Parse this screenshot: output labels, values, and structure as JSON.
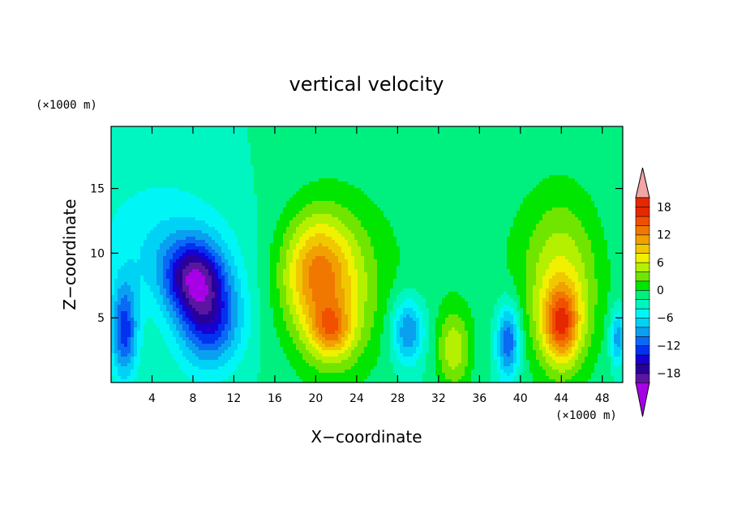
{
  "chart_data": {
    "type": "heatmap",
    "title": "vertical velocity",
    "xlabel": "X−coordinate",
    "ylabel": "Z−coordinate",
    "x_unit": "(×1000 m)",
    "y_unit": "(×1000 m)",
    "xlim": [
      0,
      50
    ],
    "ylim": [
      0,
      19.8
    ],
    "x_ticks": [
      "4",
      "8",
      "12",
      "16",
      "20",
      "24",
      "28",
      "32",
      "36",
      "40",
      "44",
      "48"
    ],
    "y_ticks": [
      "5",
      "10",
      "15"
    ],
    "colorbar_ticks": [
      "18",
      "12",
      "6",
      "0",
      "−6",
      "−12",
      "−18"
    ],
    "levels": [
      -20,
      -18,
      -16,
      -14,
      -12,
      -10,
      -8,
      -6,
      -4,
      -2,
      0,
      2,
      4,
      6,
      8,
      10,
      12,
      14,
      16,
      18,
      20
    ],
    "colors": [
      "#a800e6",
      "#5a16a0",
      "#28009a",
      "#1800d0",
      "#0032f0",
      "#0a6af5",
      "#0aa0f0",
      "#00d2f6",
      "#00f6f6",
      "#00f6c0",
      "#00f080",
      "#00e600",
      "#70e600",
      "#b4f000",
      "#f0f000",
      "#f0c800",
      "#f0a000",
      "#f07800",
      "#f05000",
      "#e62800",
      "#f2a5a5"
    ],
    "features": [
      {
        "x": 1.3,
        "z": 4.0,
        "sx": 0.9,
        "sz": 2.6,
        "w": -11
      },
      {
        "x": 8.0,
        "z": 8.2,
        "sx": 2.0,
        "sz": 2.0,
        "w": -12
      },
      {
        "x": 9.6,
        "z": 4.8,
        "sx": 2.2,
        "sz": 2.6,
        "w": -12
      },
      {
        "x": 6.0,
        "z": 10.0,
        "sx": 4.5,
        "sz": 3.2,
        "w": -4
      },
      {
        "x": 20.0,
        "z": 8.6,
        "sx": 2.3,
        "sz": 3.0,
        "w": 9
      },
      {
        "x": 21.5,
        "z": 4.0,
        "sx": 1.4,
        "sz": 1.4,
        "w": 8
      },
      {
        "x": 21.8,
        "z": 6.5,
        "sx": 3.2,
        "sz": 4.6,
        "w": 7
      },
      {
        "x": 29.0,
        "z": 4.0,
        "sx": 1.1,
        "sz": 1.8,
        "w": -9
      },
      {
        "x": 33.5,
        "z": 2.5,
        "sx": 1.2,
        "sz": 2.2,
        "w": 7
      },
      {
        "x": 38.8,
        "z": 3.2,
        "sx": 0.8,
        "sz": 2.0,
        "w": -11
      },
      {
        "x": 44.0,
        "z": 4.5,
        "sx": 1.2,
        "sz": 2.0,
        "w": 12
      },
      {
        "x": 44.0,
        "z": 7.0,
        "sx": 2.6,
        "sz": 4.8,
        "w": 8
      },
      {
        "x": 49.5,
        "z": 3.5,
        "sx": 0.5,
        "sz": 1.5,
        "w": -8
      },
      {
        "x": 33.0,
        "z": 11.0,
        "sx": 12.0,
        "sz": 6.0,
        "w": 1.4
      },
      {
        "x": 3.0,
        "z": 15.0,
        "sx": 6.0,
        "sz": 4.0,
        "w": -1
      }
    ]
  }
}
